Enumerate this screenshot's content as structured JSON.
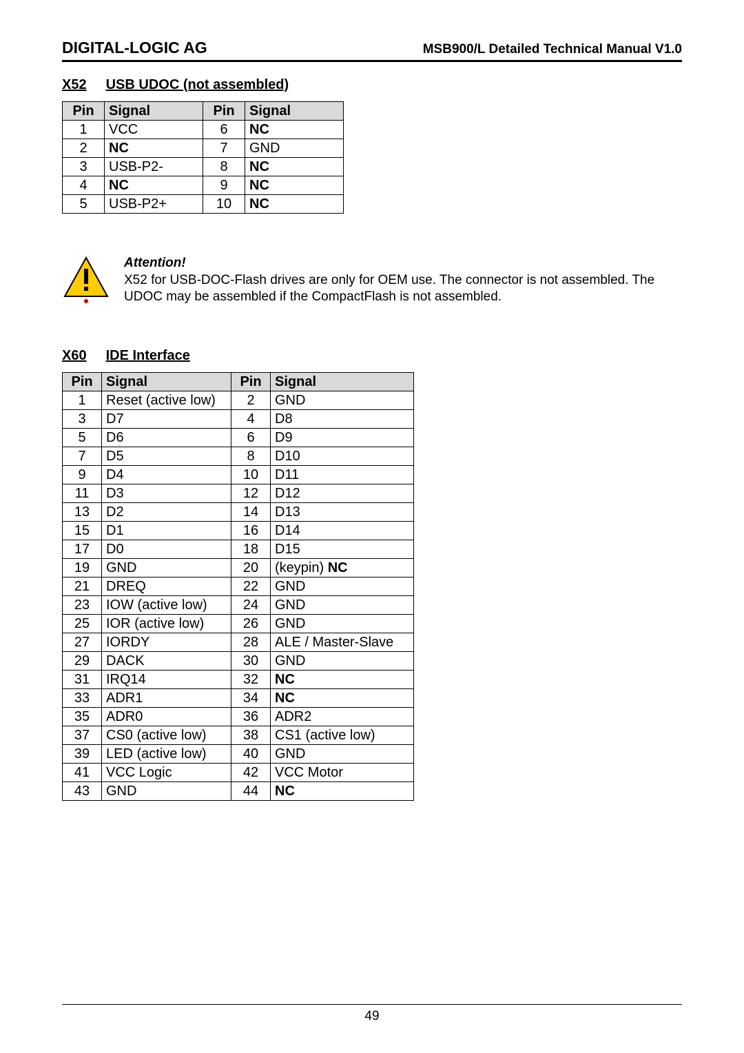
{
  "header": {
    "company": "DIGITAL-LOGIC AG",
    "docname": "MSB900/L Detailed Technical Manual V1.0"
  },
  "section1": {
    "id": "X52",
    "title": "USB UDOC (not assembled)",
    "columns": [
      "Pin",
      "Signal",
      "Pin",
      "Signal"
    ],
    "rows": [
      {
        "p1": "1",
        "s1": "VCC",
        "s1b": false,
        "p2": "6",
        "s2": "NC",
        "s2b": true
      },
      {
        "p1": "2",
        "s1": "NC",
        "s1b": true,
        "p2": "7",
        "s2": "GND",
        "s2b": false
      },
      {
        "p1": "3",
        "s1": "USB-P2-",
        "s1b": false,
        "p2": "8",
        "s2": "NC",
        "s2b": true
      },
      {
        "p1": "4",
        "s1": "NC",
        "s1b": true,
        "p2": "9",
        "s2": "NC",
        "s2b": true
      },
      {
        "p1": "5",
        "s1": "USB-P2+",
        "s1b": false,
        "p2": "10",
        "s2": "NC",
        "s2b": true
      }
    ]
  },
  "attention": {
    "heading": "Attention!",
    "body": "X52 for USB-DOC-Flash drives are only for OEM use. The connector is not assembled. The UDOC may be assembled if the CompactFlash is not assembled.",
    "icon_colors": {
      "triangle": "#ffcc00",
      "border": "#000000",
      "accent": "#cc0000"
    }
  },
  "section2": {
    "id": "X60",
    "title": "IDE Interface",
    "columns": [
      "Pin",
      "Signal",
      "Pin",
      "Signal"
    ],
    "rows": [
      {
        "p1": "1",
        "s1": "Reset (active low)",
        "s1b": false,
        "p2": "2",
        "s2": "GND",
        "s2b": false
      },
      {
        "p1": "3",
        "s1": "D7",
        "s1b": false,
        "p2": "4",
        "s2": "D8",
        "s2b": false
      },
      {
        "p1": "5",
        "s1": "D6",
        "s1b": false,
        "p2": "6",
        "s2": "D9",
        "s2b": false
      },
      {
        "p1": "7",
        "s1": "D5",
        "s1b": false,
        "p2": "8",
        "s2": "D10",
        "s2b": false
      },
      {
        "p1": "9",
        "s1": "D4",
        "s1b": false,
        "p2": "10",
        "s2": "D11",
        "s2b": false
      },
      {
        "p1": "11",
        "s1": "D3",
        "s1b": false,
        "p2": "12",
        "s2": "D12",
        "s2b": false
      },
      {
        "p1": "13",
        "s1": "D2",
        "s1b": false,
        "p2": "14",
        "s2": "D13",
        "s2b": false
      },
      {
        "p1": "15",
        "s1": "D1",
        "s1b": false,
        "p2": "16",
        "s2": "D14",
        "s2b": false
      },
      {
        "p1": "17",
        "s1": "D0",
        "s1b": false,
        "p2": "18",
        "s2": "D15",
        "s2b": false
      },
      {
        "p1": "19",
        "s1": "GND",
        "s1b": false,
        "p2": "20",
        "s2_prefix": "(keypin) ",
        "s2": "NC",
        "s2b": true
      },
      {
        "p1": "21",
        "s1": "DREQ",
        "s1b": false,
        "p2": "22",
        "s2": "GND",
        "s2b": false
      },
      {
        "p1": "23",
        "s1": "IOW (active low)",
        "s1b": false,
        "p2": "24",
        "s2": "GND",
        "s2b": false
      },
      {
        "p1": "25",
        "s1": "IOR (active low)",
        "s1b": false,
        "p2": "26",
        "s2": "GND",
        "s2b": false
      },
      {
        "p1": "27",
        "s1": "IORDY",
        "s1b": false,
        "p2": "28",
        "s2": "ALE / Master-Slave",
        "s2b": false
      },
      {
        "p1": "29",
        "s1": "DACK",
        "s1b": false,
        "p2": "30",
        "s2": "GND",
        "s2b": false
      },
      {
        "p1": "31",
        "s1": "IRQ14",
        "s1b": false,
        "p2": "32",
        "s2": "NC",
        "s2b": true
      },
      {
        "p1": "33",
        "s1": "ADR1",
        "s1b": false,
        "p2": "34",
        "s2": "NC",
        "s2b": true
      },
      {
        "p1": "35",
        "s1": "ADR0",
        "s1b": false,
        "p2": "36",
        "s2": "ADR2",
        "s2b": false
      },
      {
        "p1": "37",
        "s1": "CS0 (active low)",
        "s1b": false,
        "p2": "38",
        "s2": "CS1 (active low)",
        "s2b": false
      },
      {
        "p1": "39",
        "s1": "LED (active low)",
        "s1b": false,
        "p2": "40",
        "s2": "GND",
        "s2b": false
      },
      {
        "p1": "41",
        "s1": "VCC Logic",
        "s1b": false,
        "p2": "42",
        "s2": "VCC Motor",
        "s2b": false
      },
      {
        "p1": "43",
        "s1": "GND",
        "s1b": false,
        "p2": "44",
        "s2": "NC",
        "s2b": true
      }
    ]
  },
  "footer": {
    "page": "49"
  }
}
